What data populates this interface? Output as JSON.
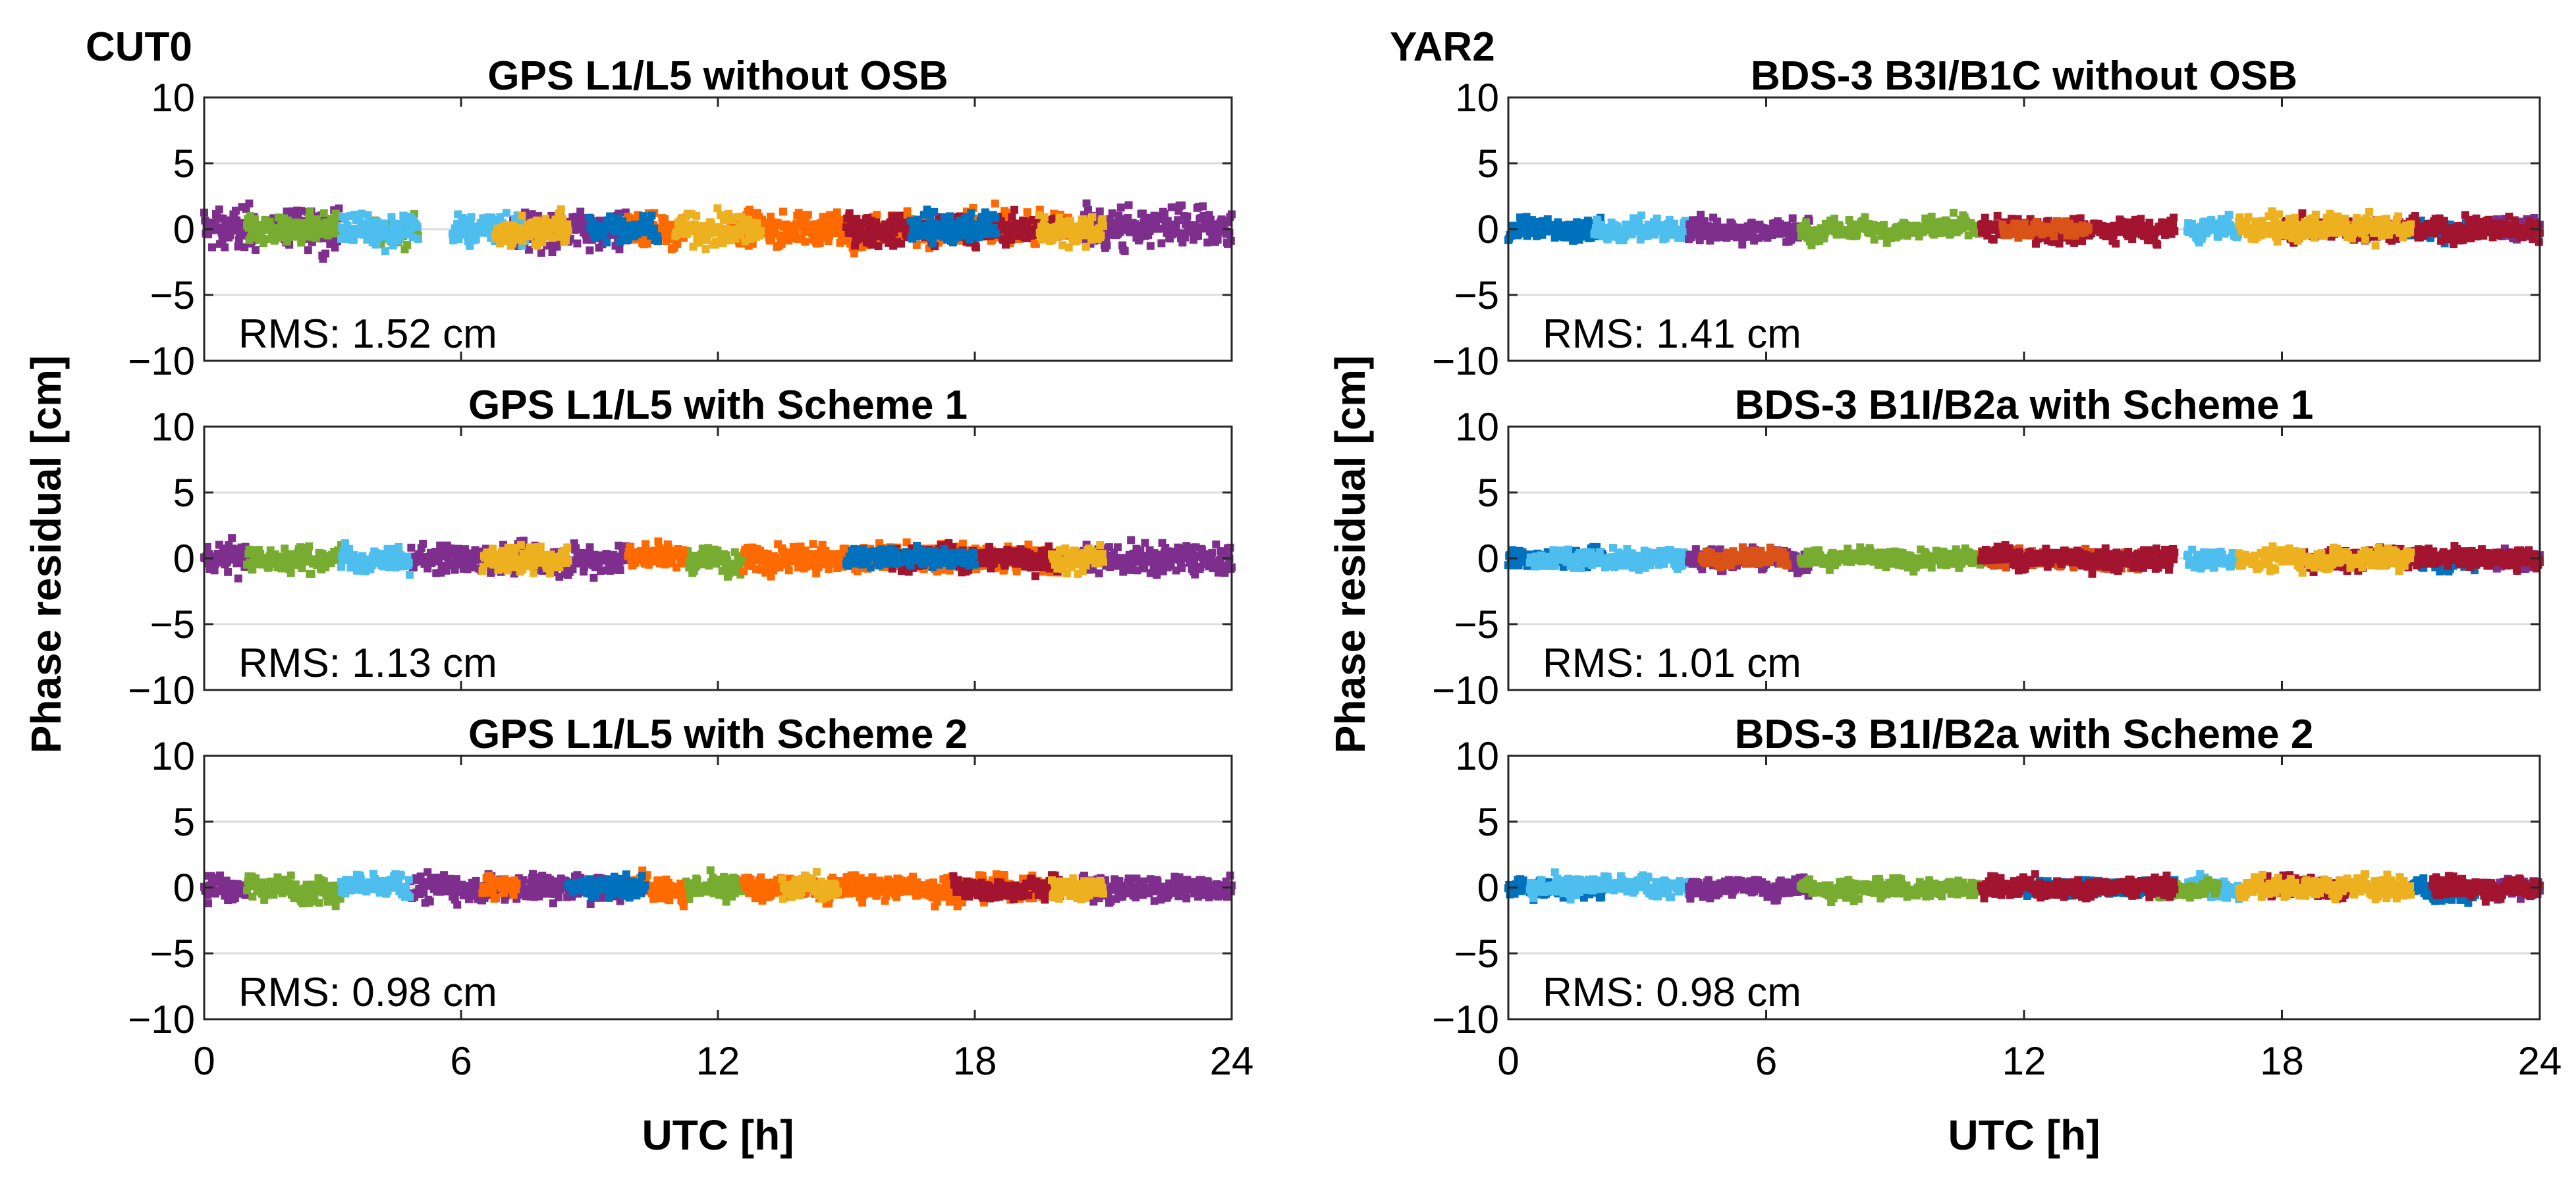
{
  "figure": {
    "ylabel": "Phase residual [cm]",
    "xlabel": "UTC [h]"
  },
  "colors": [
    "#0072BD",
    "#D95319",
    "#EDB120",
    "#7E2F8E",
    "#77AC30",
    "#4DBEEE",
    "#A2142F",
    "#FF6A00"
  ],
  "chart_data": [
    {
      "type": "scatter",
      "station": "CUT0",
      "title": "GPS L1/L5 without OSB",
      "rms": "RMS: 1.52 cm",
      "xlim": [
        0,
        24
      ],
      "ylim": [
        -10,
        10
      ],
      "xticks": [
        0,
        6,
        12,
        18,
        24
      ],
      "yticks": [
        -10,
        -5,
        0,
        5,
        10
      ],
      "xlabel": "",
      "ylabel": "Phase residual [cm]",
      "grid": "horizontal",
      "series": [
        {
          "name": "sat-purple",
          "color": "#7E2F8E",
          "segments": [
            [
              0,
              1.2
            ],
            [
              1.6,
              3.2
            ],
            [
              7.2,
              9.9
            ],
            [
              20.5,
              24
            ]
          ],
          "spread": 2.2
        },
        {
          "name": "sat-green",
          "color": "#77AC30",
          "segments": [
            [
              1.0,
              3.2
            ],
            [
              4.0,
              5.0
            ]
          ],
          "spread": 1.5
        },
        {
          "name": "sat-lightblue",
          "color": "#4DBEEE",
          "segments": [
            [
              3.2,
              5.0
            ],
            [
              5.8,
              7.5
            ]
          ],
          "spread": 1.8
        },
        {
          "name": "sat-orange",
          "color": "#FF6A00",
          "segments": [
            [
              9.9,
              11.2
            ],
            [
              12.3,
              17.5
            ],
            [
              17.5,
              20.2
            ]
          ],
          "spread": 1.8
        },
        {
          "name": "sat-red",
          "color": "#A2142F",
          "segments": [
            [
              15.0,
              20.0
            ]
          ],
          "spread": 1.5
        },
        {
          "name": "sat-yellow",
          "color": "#EDB120",
          "segments": [
            [
              6.8,
              8.5
            ],
            [
              11.0,
              13.0
            ],
            [
              19.5,
              21.0
            ]
          ],
          "spread": 1.8
        },
        {
          "name": "sat-blue",
          "color": "#0072BD",
          "segments": [
            [
              9.0,
              10.6
            ],
            [
              16.5,
              18.5
            ]
          ],
          "spread": 1.5
        }
      ]
    },
    {
      "type": "scatter",
      "station": "",
      "title": "GPS L1/L5 with Scheme 1",
      "rms": "RMS: 1.13 cm",
      "xlim": [
        0,
        24
      ],
      "ylim": [
        -10,
        10
      ],
      "xticks": [
        0,
        6,
        12,
        18,
        24
      ],
      "yticks": [
        -10,
        -5,
        0,
        5,
        10
      ],
      "xlabel": "",
      "ylabel": "Phase residual [cm]",
      "grid": "horizontal",
      "series": [
        {
          "name": "sat-purple",
          "color": "#7E2F8E",
          "segments": [
            [
              0,
              1.0
            ],
            [
              4.8,
              9.9
            ],
            [
              20.5,
              24
            ]
          ],
          "spread": 1.6
        },
        {
          "name": "sat-green",
          "color": "#77AC30",
          "segments": [
            [
              1.0,
              3.2
            ],
            [
              11.2,
              12.6
            ]
          ],
          "spread": 1.3
        },
        {
          "name": "sat-lightblue",
          "color": "#4DBEEE",
          "segments": [
            [
              3.2,
              4.8
            ]
          ],
          "spread": 1.4
        },
        {
          "name": "sat-orange",
          "color": "#FF6A00",
          "segments": [
            [
              9.9,
              11.2
            ],
            [
              12.6,
              20.0
            ]
          ],
          "spread": 1.4
        },
        {
          "name": "sat-red",
          "color": "#A2142F",
          "segments": [
            [
              16.0,
              20.0
            ]
          ],
          "spread": 1.2
        },
        {
          "name": "sat-yellow",
          "color": "#EDB120",
          "segments": [
            [
              6.5,
              8.5
            ],
            [
              19.8,
              21.0
            ]
          ],
          "spread": 1.3
        },
        {
          "name": "sat-blue",
          "color": "#0072BD",
          "segments": [
            [
              15.0,
              18.0
            ]
          ],
          "spread": 1.0
        }
      ]
    },
    {
      "type": "scatter",
      "station": "",
      "title": "GPS L1/L5 with Scheme 2",
      "rms": "RMS:  0.98 cm",
      "xlim": [
        0,
        24
      ],
      "ylim": [
        -10,
        10
      ],
      "xticks": [
        0,
        6,
        12,
        18,
        24
      ],
      "yticks": [
        -10,
        -5,
        0,
        5,
        10
      ],
      "xlabel": "UTC [h]",
      "ylabel": "Phase residual [cm]",
      "grid": "horizontal",
      "series": [
        {
          "name": "sat-purple",
          "color": "#7E2F8E",
          "segments": [
            [
              0,
              1.0
            ],
            [
              4.8,
              9.9
            ],
            [
              20.5,
              24
            ]
          ],
          "spread": 1.4
        },
        {
          "name": "sat-green",
          "color": "#77AC30",
          "segments": [
            [
              1.0,
              3.2
            ],
            [
              11.2,
              12.6
            ]
          ],
          "spread": 1.2
        },
        {
          "name": "sat-lightblue",
          "color": "#4DBEEE",
          "segments": [
            [
              3.2,
              4.8
            ]
          ],
          "spread": 1.2
        },
        {
          "name": "sat-orange",
          "color": "#FF6A00",
          "segments": [
            [
              6.5,
              7.3
            ],
            [
              9.9,
              11.2
            ],
            [
              12.6,
              20.0
            ]
          ],
          "spread": 1.3
        },
        {
          "name": "sat-red",
          "color": "#A2142F",
          "segments": [
            [
              17.5,
              20.0
            ]
          ],
          "spread": 1.1
        },
        {
          "name": "sat-yellow",
          "color": "#EDB120",
          "segments": [
            [
              13.5,
              14.8
            ],
            [
              19.8,
              21.0
            ]
          ],
          "spread": 1.2
        },
        {
          "name": "sat-blue",
          "color": "#0072BD",
          "segments": [
            [
              8.5,
              10.3
            ]
          ],
          "spread": 1.1
        }
      ]
    },
    {
      "type": "scatter",
      "station": "YAR2",
      "title": "BDS-3 B3I/B1C without OSB",
      "rms": "RMS: 1.41 cm",
      "xlim": [
        0,
        24
      ],
      "ylim": [
        -10,
        10
      ],
      "xticks": [
        0,
        6,
        12,
        18,
        24
      ],
      "yticks": [
        -10,
        -5,
        0,
        5,
        10
      ],
      "xlabel": "",
      "ylabel": "Phase residual [cm]",
      "grid": "horizontal",
      "series": [
        {
          "name": "sat-blue",
          "color": "#0072BD",
          "segments": [
            [
              0,
              2.2
            ],
            [
              21.0,
              22.5
            ]
          ],
          "spread": 1.0
        },
        {
          "name": "sat-lightblue",
          "color": "#4DBEEE",
          "segments": [
            [
              2.0,
              4.5
            ],
            [
              15.8,
              17.0
            ]
          ],
          "spread": 1.2
        },
        {
          "name": "sat-purple",
          "color": "#7E2F8E",
          "segments": [
            [
              4.2,
              7.0
            ],
            [
              23.0,
              24
            ]
          ],
          "spread": 1.2
        },
        {
          "name": "sat-green",
          "color": "#77AC30",
          "segments": [
            [
              6.8,
              11.0
            ]
          ],
          "spread": 1.0
        },
        {
          "name": "sat-red",
          "color": "#A2142F",
          "segments": [
            [
              11.0,
              15.5
            ],
            [
              18.0,
              24.0
            ]
          ],
          "spread": 1.2
        },
        {
          "name": "sat-orange",
          "color": "#D95319",
          "segments": [
            [
              11.5,
              13.5
            ]
          ],
          "spread": 0.9
        },
        {
          "name": "sat-yellow",
          "color": "#EDB120",
          "segments": [
            [
              17.0,
              21.0
            ]
          ],
          "spread": 1.3
        }
      ]
    },
    {
      "type": "scatter",
      "station": "",
      "title": "BDS-3 B1I/B2a with Scheme 1",
      "rms": "RMS: 1.01 cm",
      "xlim": [
        0,
        24
      ],
      "ylim": [
        -10,
        10
      ],
      "xticks": [
        0,
        6,
        12,
        18,
        24
      ],
      "yticks": [
        -10,
        -5,
        0,
        5,
        10
      ],
      "xlabel": "",
      "ylabel": "Phase residual [cm]",
      "grid": "horizontal",
      "series": [
        {
          "name": "sat-blue",
          "color": "#0072BD",
          "segments": [
            [
              0,
              2.2
            ],
            [
              21.0,
              22.5
            ]
          ],
          "spread": 0.9
        },
        {
          "name": "sat-lightblue",
          "color": "#4DBEEE",
          "segments": [
            [
              0.5,
              4.3
            ],
            [
              15.8,
              17.0
            ]
          ],
          "spread": 1.0
        },
        {
          "name": "sat-purple",
          "color": "#7E2F8E",
          "segments": [
            [
              4.2,
              7.0
            ],
            [
              23.0,
              24
            ]
          ],
          "spread": 1.0
        },
        {
          "name": "sat-green",
          "color": "#77AC30",
          "segments": [
            [
              6.8,
              11.0
            ]
          ],
          "spread": 0.9
        },
        {
          "name": "sat-orange",
          "color": "#D95319",
          "segments": [
            [
              4.5,
              6.5
            ],
            [
              11.0,
              15.0
            ]
          ],
          "spread": 0.9
        },
        {
          "name": "sat-red",
          "color": "#A2142F",
          "segments": [
            [
              11.0,
              15.5
            ],
            [
              18.5,
              24.0
            ]
          ],
          "spread": 1.0
        },
        {
          "name": "sat-yellow",
          "color": "#EDB120",
          "segments": [
            [
              17.0,
              21.0
            ]
          ],
          "spread": 1.1
        }
      ]
    },
    {
      "type": "scatter",
      "station": "",
      "title": "BDS-3 B1I/B2a with Scheme 2",
      "rms": "RMS: 0.98 cm",
      "xlim": [
        0,
        24
      ],
      "ylim": [
        -10,
        10
      ],
      "xticks": [
        0,
        6,
        12,
        18,
        24
      ],
      "yticks": [
        -10,
        -5,
        0,
        5,
        10
      ],
      "xlabel": "UTC [h]",
      "ylabel": "Phase residual [cm]",
      "grid": "horizontal",
      "series": [
        {
          "name": "sat-blue",
          "color": "#0072BD",
          "segments": [
            [
              0,
              2.2
            ],
            [
              12.0,
              15.5
            ],
            [
              21.0,
              22.5
            ]
          ],
          "spread": 0.9
        },
        {
          "name": "sat-lightblue",
          "color": "#4DBEEE",
          "segments": [
            [
              0.5,
              4.3
            ],
            [
              15.8,
              17.0
            ]
          ],
          "spread": 1.0
        },
        {
          "name": "sat-purple",
          "color": "#7E2F8E",
          "segments": [
            [
              4.2,
              7.0
            ],
            [
              23.0,
              24
            ]
          ],
          "spread": 1.0
        },
        {
          "name": "sat-green",
          "color": "#77AC30",
          "segments": [
            [
              6.8,
              11.0
            ],
            [
              15.0,
              16.5
            ]
          ],
          "spread": 0.9
        },
        {
          "name": "sat-red",
          "color": "#A2142F",
          "segments": [
            [
              11.0,
              15.5
            ],
            [
              17.5,
              19.5
            ],
            [
              21.5,
              24.0
            ]
          ],
          "spread": 1.0
        },
        {
          "name": "sat-yellow",
          "color": "#EDB120",
          "segments": [
            [
              17.0,
              21.0
            ]
          ],
          "spread": 1.1
        }
      ]
    }
  ]
}
